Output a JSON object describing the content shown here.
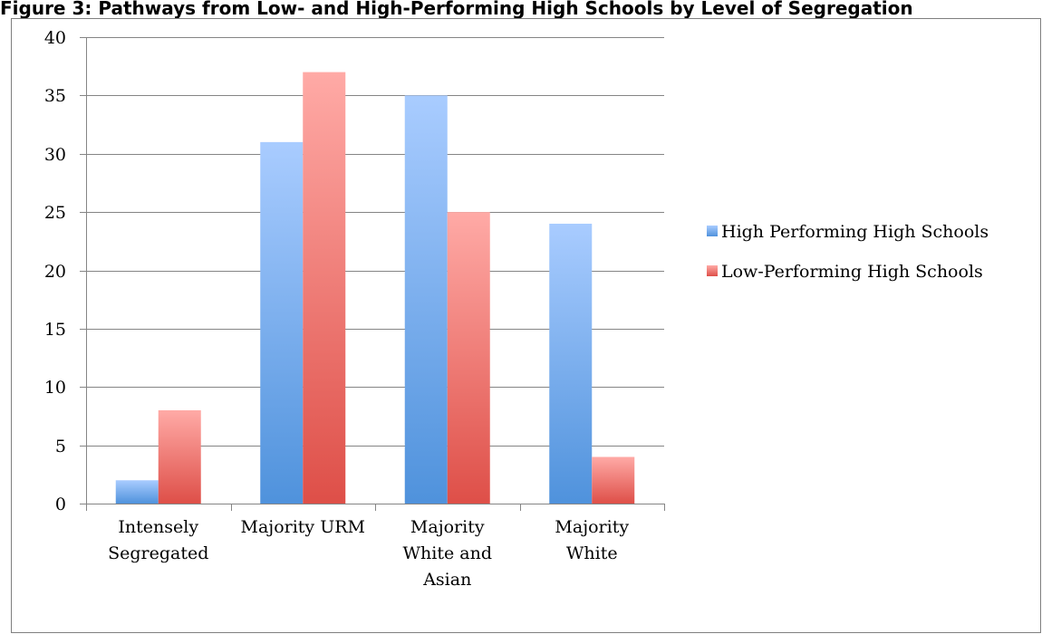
{
  "chart_data": {
    "type": "bar",
    "title": "Figure 3: Pathways from Low- and High-Performing High Schools by Level of Segregation",
    "xlabel": "",
    "ylabel": "",
    "ylim": [
      0,
      40
    ],
    "yticks": [
      0,
      5,
      10,
      15,
      20,
      25,
      30,
      35,
      40
    ],
    "grid": true,
    "legend_position": "right",
    "categories": [
      [
        "Intensely",
        "Segregated"
      ],
      [
        "Majority URM"
      ],
      [
        "Majority",
        "White and",
        "Asian"
      ],
      [
        "Majority",
        "White"
      ]
    ],
    "series": [
      {
        "name": "High Performing High Schools",
        "values": [
          2,
          31,
          35,
          24
        ],
        "color_top": "#a9ccff",
        "color_bottom": "#4f92dc"
      },
      {
        "name": "Low-Performing High Schools",
        "values": [
          8,
          37,
          25,
          4
        ],
        "color_top": "#ffaaa6",
        "color_bottom": "#de4f48"
      }
    ]
  }
}
